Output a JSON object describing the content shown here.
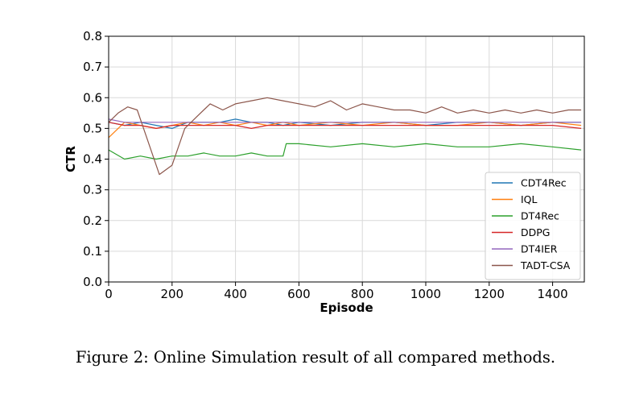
{
  "caption": "Figure 2: Online Simulation result of all compared methods.",
  "chart_data": {
    "type": "line",
    "xlabel": "Episode",
    "ylabel": "CTR",
    "xlim": [
      0,
      1500
    ],
    "ylim": [
      0.0,
      0.8
    ],
    "xticks": [
      0,
      200,
      400,
      600,
      800,
      1000,
      1200,
      1400
    ],
    "yticks": [
      0.0,
      0.1,
      0.2,
      0.3,
      0.4,
      0.5,
      0.6,
      0.7,
      0.8
    ],
    "xtick_labels": [
      "0",
      "200",
      "400",
      "600",
      "800",
      "1000",
      "1200",
      "1400"
    ],
    "ytick_labels": [
      "0.0",
      "0.1",
      "0.2",
      "0.3",
      "0.4",
      "0.5",
      "0.6",
      "0.7",
      "0.8"
    ],
    "grid": true,
    "legend_position": "lower-right",
    "series": [
      {
        "name": "CDT4Rec",
        "color": "#1f77b4",
        "x": [
          0,
          50,
          100,
          150,
          200,
          250,
          300,
          350,
          400,
          450,
          500,
          550,
          600,
          700,
          800,
          900,
          1000,
          1100,
          1200,
          1300,
          1400,
          1490
        ],
        "y": [
          0.52,
          0.51,
          0.52,
          0.51,
          0.5,
          0.52,
          0.52,
          0.52,
          0.53,
          0.52,
          0.52,
          0.51,
          0.52,
          0.51,
          0.52,
          0.52,
          0.51,
          0.52,
          0.52,
          0.51,
          0.52,
          0.52
        ]
      },
      {
        "name": "IQL",
        "color": "#ff7f0e",
        "x": [
          0,
          50,
          100,
          150,
          200,
          250,
          300,
          350,
          400,
          450,
          500,
          550,
          600,
          700,
          800,
          900,
          1000,
          1100,
          1200,
          1300,
          1400,
          1490
        ],
        "y": [
          0.47,
          0.52,
          0.51,
          0.5,
          0.51,
          0.52,
          0.51,
          0.52,
          0.51,
          0.52,
          0.51,
          0.52,
          0.51,
          0.52,
          0.51,
          0.52,
          0.51,
          0.51,
          0.52,
          0.51,
          0.52,
          0.51
        ]
      },
      {
        "name": "DT4Rec",
        "color": "#2ca02c",
        "x": [
          0,
          50,
          100,
          150,
          200,
          250,
          300,
          350,
          400,
          450,
          500,
          550,
          560,
          600,
          700,
          800,
          900,
          1000,
          1100,
          1200,
          1300,
          1400,
          1490
        ],
        "y": [
          0.43,
          0.4,
          0.41,
          0.4,
          0.41,
          0.41,
          0.42,
          0.41,
          0.41,
          0.42,
          0.41,
          0.41,
          0.45,
          0.45,
          0.44,
          0.45,
          0.44,
          0.45,
          0.44,
          0.44,
          0.45,
          0.44,
          0.43
        ]
      },
      {
        "name": "DDPG",
        "color": "#d62728",
        "x": [
          0,
          50,
          100,
          150,
          200,
          250,
          300,
          350,
          400,
          450,
          500,
          550,
          600,
          700,
          800,
          900,
          1000,
          1100,
          1200,
          1300,
          1400,
          1490
        ],
        "y": [
          0.52,
          0.51,
          0.51,
          0.5,
          0.51,
          0.51,
          0.51,
          0.51,
          0.51,
          0.5,
          0.51,
          0.51,
          0.51,
          0.51,
          0.51,
          0.51,
          0.51,
          0.51,
          0.51,
          0.51,
          0.51,
          0.5
        ]
      },
      {
        "name": "DT4IER",
        "color": "#9467bd",
        "x": [
          0,
          50,
          100,
          150,
          200,
          250,
          300,
          350,
          400,
          450,
          500,
          550,
          600,
          700,
          800,
          900,
          1000,
          1100,
          1200,
          1300,
          1400,
          1490
        ],
        "y": [
          0.53,
          0.52,
          0.52,
          0.52,
          0.52,
          0.52,
          0.52,
          0.52,
          0.52,
          0.52,
          0.52,
          0.52,
          0.52,
          0.52,
          0.52,
          0.52,
          0.52,
          0.52,
          0.52,
          0.52,
          0.52,
          0.52
        ]
      },
      {
        "name": "TADT-CSA",
        "color": "#8c564b",
        "x": [
          0,
          30,
          60,
          90,
          120,
          160,
          200,
          240,
          280,
          320,
          360,
          400,
          450,
          500,
          550,
          600,
          650,
          700,
          750,
          800,
          850,
          900,
          950,
          1000,
          1050,
          1100,
          1150,
          1200,
          1250,
          1300,
          1350,
          1400,
          1450,
          1490
        ],
        "y": [
          0.52,
          0.55,
          0.57,
          0.56,
          0.47,
          0.35,
          0.38,
          0.5,
          0.54,
          0.58,
          0.56,
          0.58,
          0.59,
          0.6,
          0.59,
          0.58,
          0.57,
          0.59,
          0.56,
          0.58,
          0.57,
          0.56,
          0.56,
          0.55,
          0.57,
          0.55,
          0.56,
          0.55,
          0.56,
          0.55,
          0.56,
          0.55,
          0.56,
          0.56
        ]
      }
    ]
  }
}
